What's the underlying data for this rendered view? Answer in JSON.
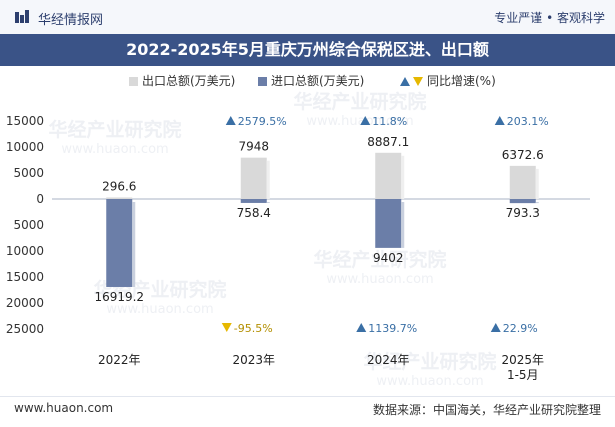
{
  "brand": {
    "name": "华经情报网",
    "icon": "huajing-logo-icon"
  },
  "slogan": "专业严谨 • 客观科学",
  "header": {
    "title": "2022-2025年5月重庆万州综合保税区进、出口额"
  },
  "watermark": {
    "cn": "华经产业研究院",
    "en": "www.huaon.com"
  },
  "footer": {
    "url": "www.huaon.com",
    "source": "数据来源：中国海关，华经产业研究院整理"
  },
  "colors": {
    "export": "#d9d9d9",
    "import": "#6b7ea8",
    "up": "#3a6fa5",
    "down": "#e6b800",
    "title_bg": "#3a5387"
  },
  "chart_data": {
    "type": "bar",
    "categories": [
      "2022年",
      "2023年",
      "2024年",
      "2025年\n1-5月"
    ],
    "series": [
      {
        "name": "出口总额(万美元)",
        "values": [
          296.6,
          7948,
          8887.1,
          6372.6
        ],
        "labels": [
          "296.6",
          "7948",
          "8887.1",
          "6372.6"
        ]
      },
      {
        "name": "进口总额(万美元)",
        "values": [
          -16919.2,
          -758.4,
          -9402,
          -793.3
        ],
        "labels": [
          "16919.2",
          "758.4",
          "9402",
          "793.3"
        ]
      }
    ],
    "growth": {
      "name": "同比增速(%)",
      "export": [
        null,
        2579.5,
        11.8,
        203.1
      ],
      "export_labels": [
        "",
        "2579.5%",
        "11.8%",
        "203.1%"
      ],
      "import": [
        null,
        -95.5,
        1139.7,
        22.9
      ],
      "import_labels": [
        "",
        "-95.5%",
        "1139.7%",
        "22.9%"
      ]
    },
    "ylim": [
      -25000,
      15000
    ],
    "yticks": [
      15000,
      10000,
      5000,
      0,
      -5000,
      -10000,
      -15000,
      -20000,
      -25000
    ],
    "ytick_labels": [
      "15000",
      "10000",
      "5000",
      "0",
      "5000",
      "10000",
      "15000",
      "20000",
      "25000"
    ],
    "legend_position": "top-center"
  }
}
